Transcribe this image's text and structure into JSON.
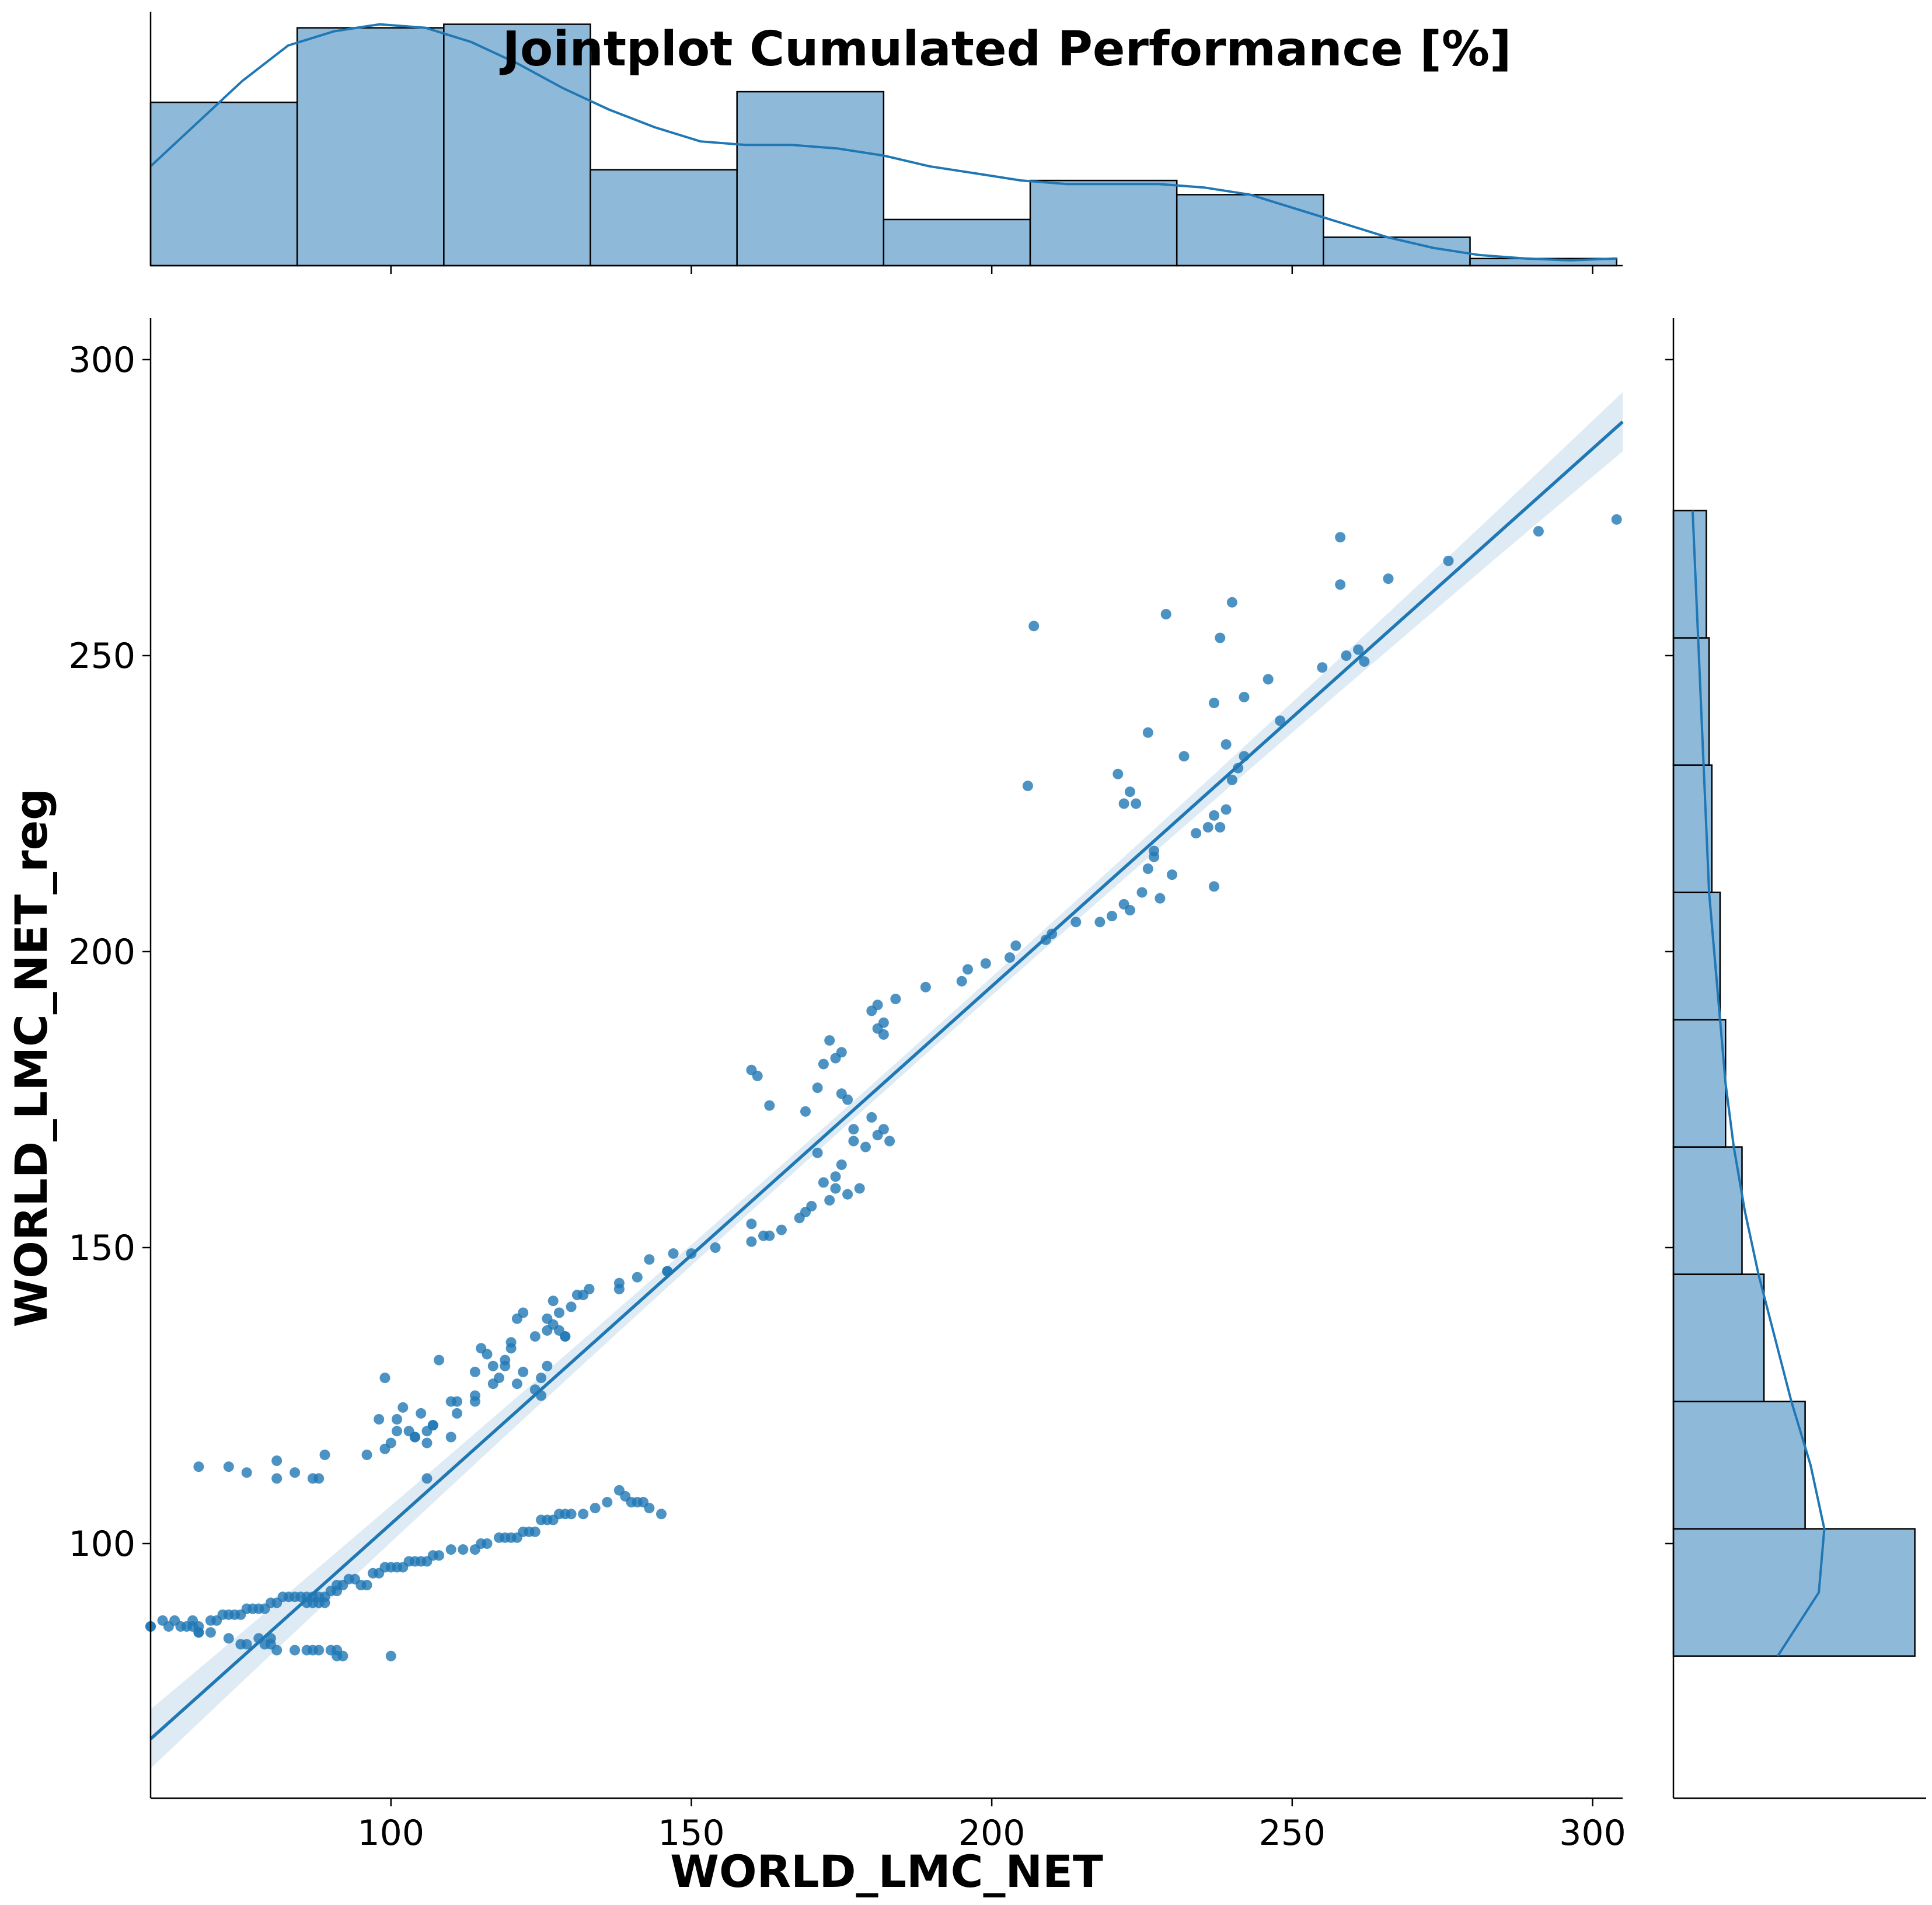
{
  "chart_data": {
    "type": "scatter",
    "title": "Jointplot Cumulated Performance [%]",
    "xlabel": "WORLD_LMC_NET",
    "ylabel": "WORLD_LMC_NET_reg",
    "xlim": [
      60,
      305
    ],
    "ylim": [
      57,
      307
    ],
    "xticks": [
      100,
      150,
      200,
      250,
      300
    ],
    "yticks": [
      100,
      150,
      200,
      250,
      300
    ],
    "grid": false,
    "colors": {
      "series": "#1f77b4",
      "bar_fill": "#8fb9d9"
    },
    "scatter": {
      "x": [
        60,
        62,
        64,
        66,
        67,
        67,
        68,
        68,
        70,
        71,
        72,
        73,
        74,
        75,
        76,
        77,
        78,
        79,
        80,
        81,
        82,
        83,
        84,
        85,
        86,
        86,
        87,
        87,
        88,
        88,
        89,
        89,
        90,
        91,
        91,
        92,
        93,
        94,
        95,
        96,
        97,
        98,
        99,
        100,
        101,
        102,
        103,
        104,
        105,
        106,
        107,
        108,
        110,
        112,
        114,
        115,
        116,
        118,
        119,
        120,
        121,
        122,
        123,
        124,
        125,
        126,
        127,
        128,
        129,
        130,
        132,
        134,
        136,
        138,
        139,
        140,
        141,
        142,
        143,
        145,
        60,
        63,
        65,
        68,
        70,
        73,
        75,
        76,
        78,
        79,
        80,
        80,
        81,
        84,
        86,
        87,
        88,
        90,
        91,
        91,
        92,
        100,
        68,
        73,
        76,
        81,
        81,
        84,
        87,
        88,
        89,
        96,
        98,
        99,
        100,
        101,
        101,
        102,
        103,
        104,
        104,
        105,
        106,
        106,
        107,
        108,
        110,
        111,
        111,
        114,
        114,
        115,
        116,
        117,
        119,
        120,
        121,
        122,
        124,
        125,
        126,
        126,
        127,
        128,
        128,
        129,
        130,
        131,
        133,
        99,
        106,
        107,
        110,
        114,
        117,
        118,
        119,
        120,
        121,
        122,
        124,
        125,
        126,
        127,
        129,
        132,
        138,
        138,
        141,
        143,
        146,
        146,
        147,
        150,
        154,
        160,
        160,
        162,
        163,
        165,
        168,
        169,
        170,
        171,
        172,
        173,
        174,
        174,
        175,
        176,
        177,
        177,
        178,
        179,
        180,
        181,
        182,
        183,
        160,
        161,
        163,
        169,
        171,
        172,
        173,
        174,
        175,
        175,
        176,
        180,
        181,
        181,
        182,
        182,
        184,
        189,
        195,
        196,
        199,
        203,
        204,
        209,
        210,
        214,
        218,
        220,
        222,
        223,
        225,
        226,
        228,
        230,
        234,
        236,
        237,
        238,
        239,
        240,
        241,
        242,
        248,
        255,
        259,
        261,
        262,
        266,
        276,
        291,
        304,
        222,
        223,
        227,
        227,
        237,
        206,
        207,
        221,
        224,
        226,
        229,
        232,
        237,
        238,
        239,
        240,
        242,
        246,
        258,
        258
      ],
      "y": [
        86,
        87,
        87,
        86,
        86,
        87,
        86,
        85,
        87,
        87,
        88,
        88,
        88,
        88,
        89,
        89,
        89,
        89,
        90,
        90,
        91,
        91,
        91,
        91,
        91,
        90,
        91,
        90,
        90,
        91,
        91,
        90,
        92,
        92,
        93,
        93,
        94,
        94,
        93,
        93,
        95,
        95,
        96,
        96,
        96,
        96,
        97,
        97,
        97,
        97,
        98,
        98,
        99,
        99,
        99,
        100,
        100,
        101,
        101,
        101,
        101,
        102,
        102,
        102,
        104,
        104,
        104,
        105,
        105,
        105,
        105,
        106,
        107,
        109,
        108,
        107,
        107,
        107,
        106,
        105,
        86,
        86,
        86,
        85,
        85,
        84,
        83,
        83,
        84,
        83,
        84,
        83,
        82,
        82,
        82,
        82,
        82,
        82,
        81,
        82,
        81,
        81,
        113,
        113,
        112,
        111,
        114,
        112,
        111,
        111,
        115,
        115,
        121,
        116,
        117,
        119,
        121,
        123,
        119,
        118,
        118,
        122,
        117,
        119,
        120,
        131,
        118,
        122,
        124,
        124,
        125,
        133,
        132,
        130,
        131,
        134,
        138,
        139,
        126,
        125,
        136,
        130,
        137,
        139,
        136,
        135,
        140,
        142,
        143,
        128,
        111,
        120,
        124,
        129,
        127,
        128,
        130,
        133,
        127,
        129,
        135,
        128,
        138,
        141,
        135,
        142,
        144,
        143,
        145,
        148,
        146,
        146,
        149,
        149,
        150,
        151,
        154,
        152,
        152,
        153,
        155,
        156,
        157,
        166,
        161,
        158,
        160,
        162,
        164,
        159,
        168,
        170,
        160,
        167,
        172,
        169,
        170,
        168,
        180,
        179,
        174,
        173,
        177,
        181,
        185,
        182,
        183,
        176,
        175,
        190,
        191,
        187,
        186,
        188,
        192,
        194,
        195,
        197,
        198,
        199,
        201,
        202,
        203,
        205,
        205,
        206,
        208,
        207,
        210,
        214,
        209,
        213,
        220,
        221,
        223,
        221,
        224,
        229,
        231,
        233,
        239,
        248,
        250,
        251,
        249,
        263,
        266,
        271,
        273,
        225,
        227,
        217,
        216,
        242,
        228,
        255,
        230,
        225,
        237,
        257,
        233,
        211,
        253,
        235,
        259,
        243,
        246,
        262,
        270
      ],
      "point_color": "#1f77b4"
    },
    "regression": {
      "x": [
        60,
        305
      ],
      "y": [
        67,
        289.5
      ],
      "ci_halfwidth_ends": 5,
      "ci_halfwidth_center": 1.5
    },
    "marginal_x": {
      "bin_edges": [
        60,
        84.4,
        108.8,
        133.2,
        157.6,
        182,
        206.4,
        230.8,
        255.2,
        279.6,
        304
      ],
      "counts": [
        46,
        67,
        68,
        27,
        49,
        13,
        24,
        20,
        8,
        2
      ],
      "kde_y": [
        28,
        40,
        52,
        62,
        66,
        68,
        67,
        63,
        57,
        50,
        44,
        39,
        35,
        34,
        34,
        33,
        31,
        28,
        26,
        24,
        23,
        23,
        23,
        22,
        20,
        16,
        12,
        8,
        5,
        3,
        2,
        1.5,
        2
      ]
    },
    "marginal_y": {
      "bin_edges": [
        81,
        102.5,
        124,
        145.5,
        167,
        188.5,
        210,
        231.5,
        253,
        274.5
      ],
      "counts": [
        88,
        48,
        33,
        25,
        19,
        17,
        14,
        13,
        12
      ],
      "kde_x": [
        38,
        53,
        55,
        50,
        43,
        37,
        31,
        26,
        22,
        19,
        17,
        15,
        13,
        12,
        11,
        10,
        9,
        8,
        7
      ]
    }
  }
}
